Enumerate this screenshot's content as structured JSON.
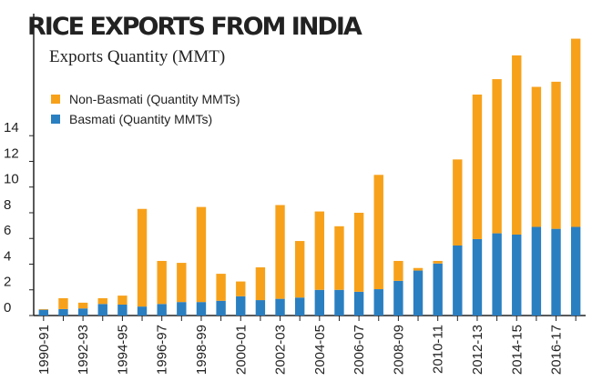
{
  "chart_data": {
    "type": "stacked_bar",
    "title": "RICE EXPORTS FROM INDIA",
    "subtitle": "Exports Quantity  (MMT)",
    "categories": [
      "1990-91",
      null,
      "1992-93",
      null,
      "1994-95",
      null,
      "1996-97",
      null,
      "1998-99",
      null,
      "2000-01",
      null,
      "2002-03",
      null,
      "2004-05",
      null,
      "2006-07",
      null,
      "2008-09",
      null,
      "2010-11",
      null,
      "2012-13",
      null,
      "2014-15",
      null,
      "2016-17",
      null
    ],
    "series": [
      {
        "name": "Non-Basmati (Quantity MMTs)",
        "color": "#f7a11a",
        "values": [
          0.05,
          0.85,
          0.45,
          0.45,
          0.7,
          7.6,
          3.35,
          3.05,
          7.4,
          2.1,
          1.15,
          2.55,
          7.3,
          4.4,
          6.1,
          4.95,
          6.15,
          8.9,
          1.55,
          0.2,
          0.2,
          6.7,
          11.25,
          12.0,
          13.95,
          10.9,
          11.45,
          14.65
        ]
      },
      {
        "name": "Basmati (Quantity MMTs)",
        "color": "#2a7fc1",
        "values": [
          0.45,
          0.5,
          0.55,
          0.9,
          0.85,
          0.7,
          0.9,
          1.05,
          1.05,
          1.15,
          1.5,
          1.2,
          1.3,
          1.4,
          2.0,
          2.0,
          1.85,
          2.05,
          2.7,
          3.5,
          4.05,
          5.45,
          5.95,
          6.4,
          6.3,
          6.9,
          6.75,
          6.9
        ]
      }
    ],
    "ylim": [
      0,
      23.5
    ],
    "yticks": [
      0,
      2,
      4,
      6,
      8,
      10,
      12,
      14
    ],
    "legend": "top-left"
  }
}
